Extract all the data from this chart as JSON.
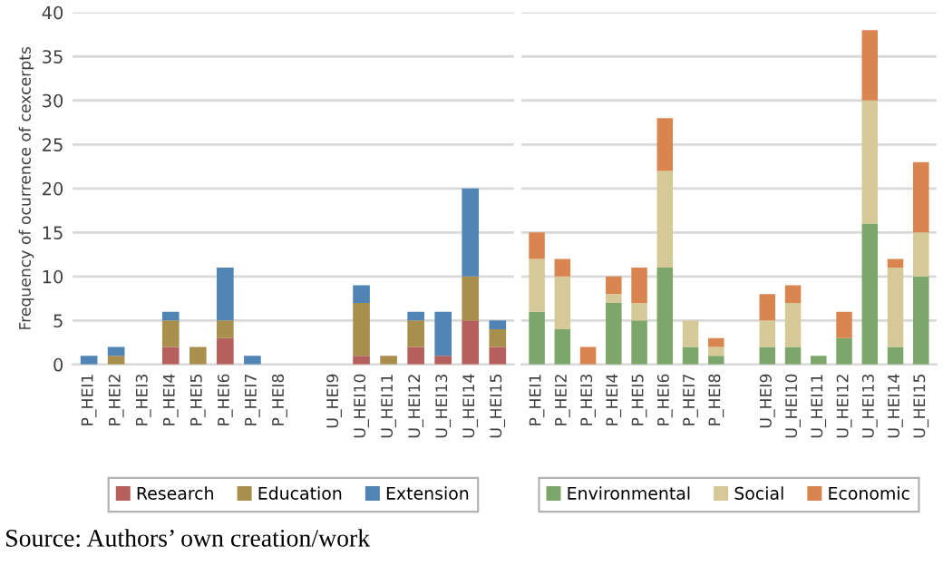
{
  "chart_data": [
    {
      "type": "bar",
      "stacked": true,
      "ylabel": "Frequency of ocurrence of cexcerpts",
      "categories": [
        "P_HEI1",
        "P_HEI2",
        "P_HEI3",
        "P_HEI4",
        "P_HEI5",
        "P_HEI6",
        "P_HEI7",
        "P_HEI8",
        null,
        "U_HEI9",
        "U_HEI10",
        "U_HEI11",
        "U_HEI12",
        "U_HEI13",
        "U_HEI14",
        "U_HEI15"
      ],
      "series": [
        {
          "name": "Research",
          "color": "#b5605c",
          "values": [
            0,
            0,
            0,
            2,
            0,
            3,
            0,
            0,
            null,
            0,
            1,
            0,
            2,
            1,
            5,
            2
          ]
        },
        {
          "name": "Education",
          "color": "#a88f4c",
          "values": [
            0,
            1,
            0,
            3,
            2,
            2,
            0,
            0,
            null,
            0,
            6,
            1,
            3,
            0,
            5,
            2
          ]
        },
        {
          "name": "Extension",
          "color": "#4f84b4",
          "values": [
            1,
            1,
            0,
            1,
            0,
            6,
            1,
            0,
            null,
            0,
            2,
            0,
            1,
            5,
            10,
            1
          ]
        }
      ],
      "ylim": [
        0,
        40
      ],
      "yticks": [
        0,
        5,
        10,
        15,
        20,
        25,
        30,
        35,
        40
      ],
      "grid": "y",
      "legend": "bottom"
    },
    {
      "type": "bar",
      "stacked": true,
      "categories": [
        "P_HEI1",
        "P_HEI2",
        "P_HEI3",
        "P_HEI4",
        "P_HEI5",
        "P_HEI6",
        "P_HEI7",
        "P_HEI8",
        null,
        "U_HEI9",
        "U_HEI10",
        "U_HEI11",
        "U_HEI12",
        "U_HEI13",
        "U_HEI14",
        "U_HEI15"
      ],
      "series": [
        {
          "name": "Environmental",
          "color": "#7ca66a",
          "values": [
            6,
            4,
            0,
            7,
            5,
            11,
            2,
            1,
            null,
            2,
            2,
            1,
            3,
            16,
            2,
            10
          ]
        },
        {
          "name": "Social",
          "color": "#d5c998",
          "values": [
            6,
            6,
            0,
            1,
            2,
            11,
            3,
            1,
            null,
            3,
            5,
            0,
            0,
            14,
            9,
            5
          ]
        },
        {
          "name": "Economic",
          "color": "#d9854f",
          "values": [
            3,
            2,
            2,
            2,
            4,
            6,
            0,
            1,
            null,
            3,
            2,
            0,
            3,
            8,
            1,
            8
          ]
        }
      ],
      "ylim": [
        0,
        40
      ],
      "yticks": [
        0,
        5,
        10,
        15,
        20,
        25,
        30,
        35,
        40
      ],
      "grid": "y",
      "legend": "bottom",
      "tick_labels": "x",
      "annotations": [
        "Source: Authors’ own creation/work"
      ]
    }
  ]
}
